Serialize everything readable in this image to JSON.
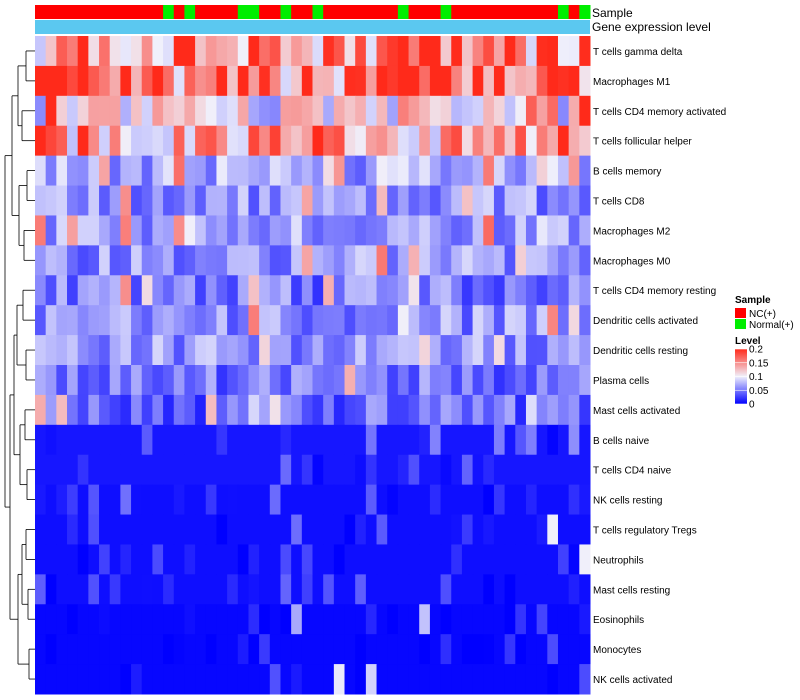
{
  "chart_data": {
    "type": "heatmap",
    "title": "",
    "annotation_labels": {
      "sample": "Sample",
      "level": "Gene expression level"
    },
    "sample_groups": [
      "NC",
      "NC",
      "NC",
      "NC",
      "NC",
      "NC",
      "NC",
      "NC",
      "NC",
      "NC",
      "NC",
      "NC",
      "Normal",
      "NC",
      "Normal",
      "NC",
      "NC",
      "NC",
      "NC",
      "Normal",
      "Normal",
      "NC",
      "NC",
      "Normal",
      "NC",
      "NC",
      "Normal",
      "NC",
      "NC",
      "NC",
      "NC",
      "NC",
      "NC",
      "NC",
      "Normal",
      "NC",
      "NC",
      "NC",
      "Normal",
      "NC",
      "NC",
      "NC",
      "NC",
      "NC",
      "NC",
      "NC",
      "NC",
      "NC",
      "NC",
      "Normal",
      "NC",
      "Normal"
    ],
    "rows": [
      "T cells gamma delta",
      "Macrophages M1",
      "T cells CD4 memory activated",
      "T cells follicular helper",
      "B cells memory",
      "T cells CD8",
      "Macrophages M2",
      "Macrophages M0",
      "T cells CD4 memory resting",
      "Dendritic cells activated",
      "Dendritic cells resting",
      "Plasma cells",
      "Mast cells activated",
      "B cells naive",
      "T cells CD4 naive",
      "NK cells resting",
      "T cells regulatory  Tregs",
      "Neutrophils",
      "Mast cells resting",
      "Eosinophils",
      "Monocytes",
      "NK cells activated"
    ],
    "row_base_levels": [
      0.15,
      0.16,
      0.1,
      0.13,
      0.07,
      0.06,
      0.07,
      0.06,
      0.05,
      0.06,
      0.06,
      0.05,
      0.04,
      0.03,
      0.03,
      0.02,
      0.02,
      0.02,
      0.02,
      0.01,
      0.01,
      0.01
    ],
    "color_scale": {
      "min": 0,
      "max": 0.2,
      "low_color": "#0000ff",
      "mid_color": "#f0f0fb",
      "high_color": "#ff2a1a"
    },
    "sample_colors": {
      "NC": "#ff0000",
      "Normal": "#00ee00"
    },
    "level_bar_color": "#5bc8f0",
    "legend": {
      "sample_title": "Sample",
      "sample_items": [
        {
          "key": "NC",
          "label": "NC(+)"
        },
        {
          "key": "Normal",
          "label": "Normal(+)"
        }
      ],
      "level_title": "Level",
      "level_ticks": [
        {
          "value": 0.2,
          "label": "0.2"
        },
        {
          "value": 0.15,
          "label": "0.15"
        },
        {
          "value": 0.1,
          "label": "0.1"
        },
        {
          "value": 0.05,
          "label": "0.05"
        },
        {
          "value": 0,
          "label": "0"
        }
      ],
      "position": "right"
    }
  }
}
